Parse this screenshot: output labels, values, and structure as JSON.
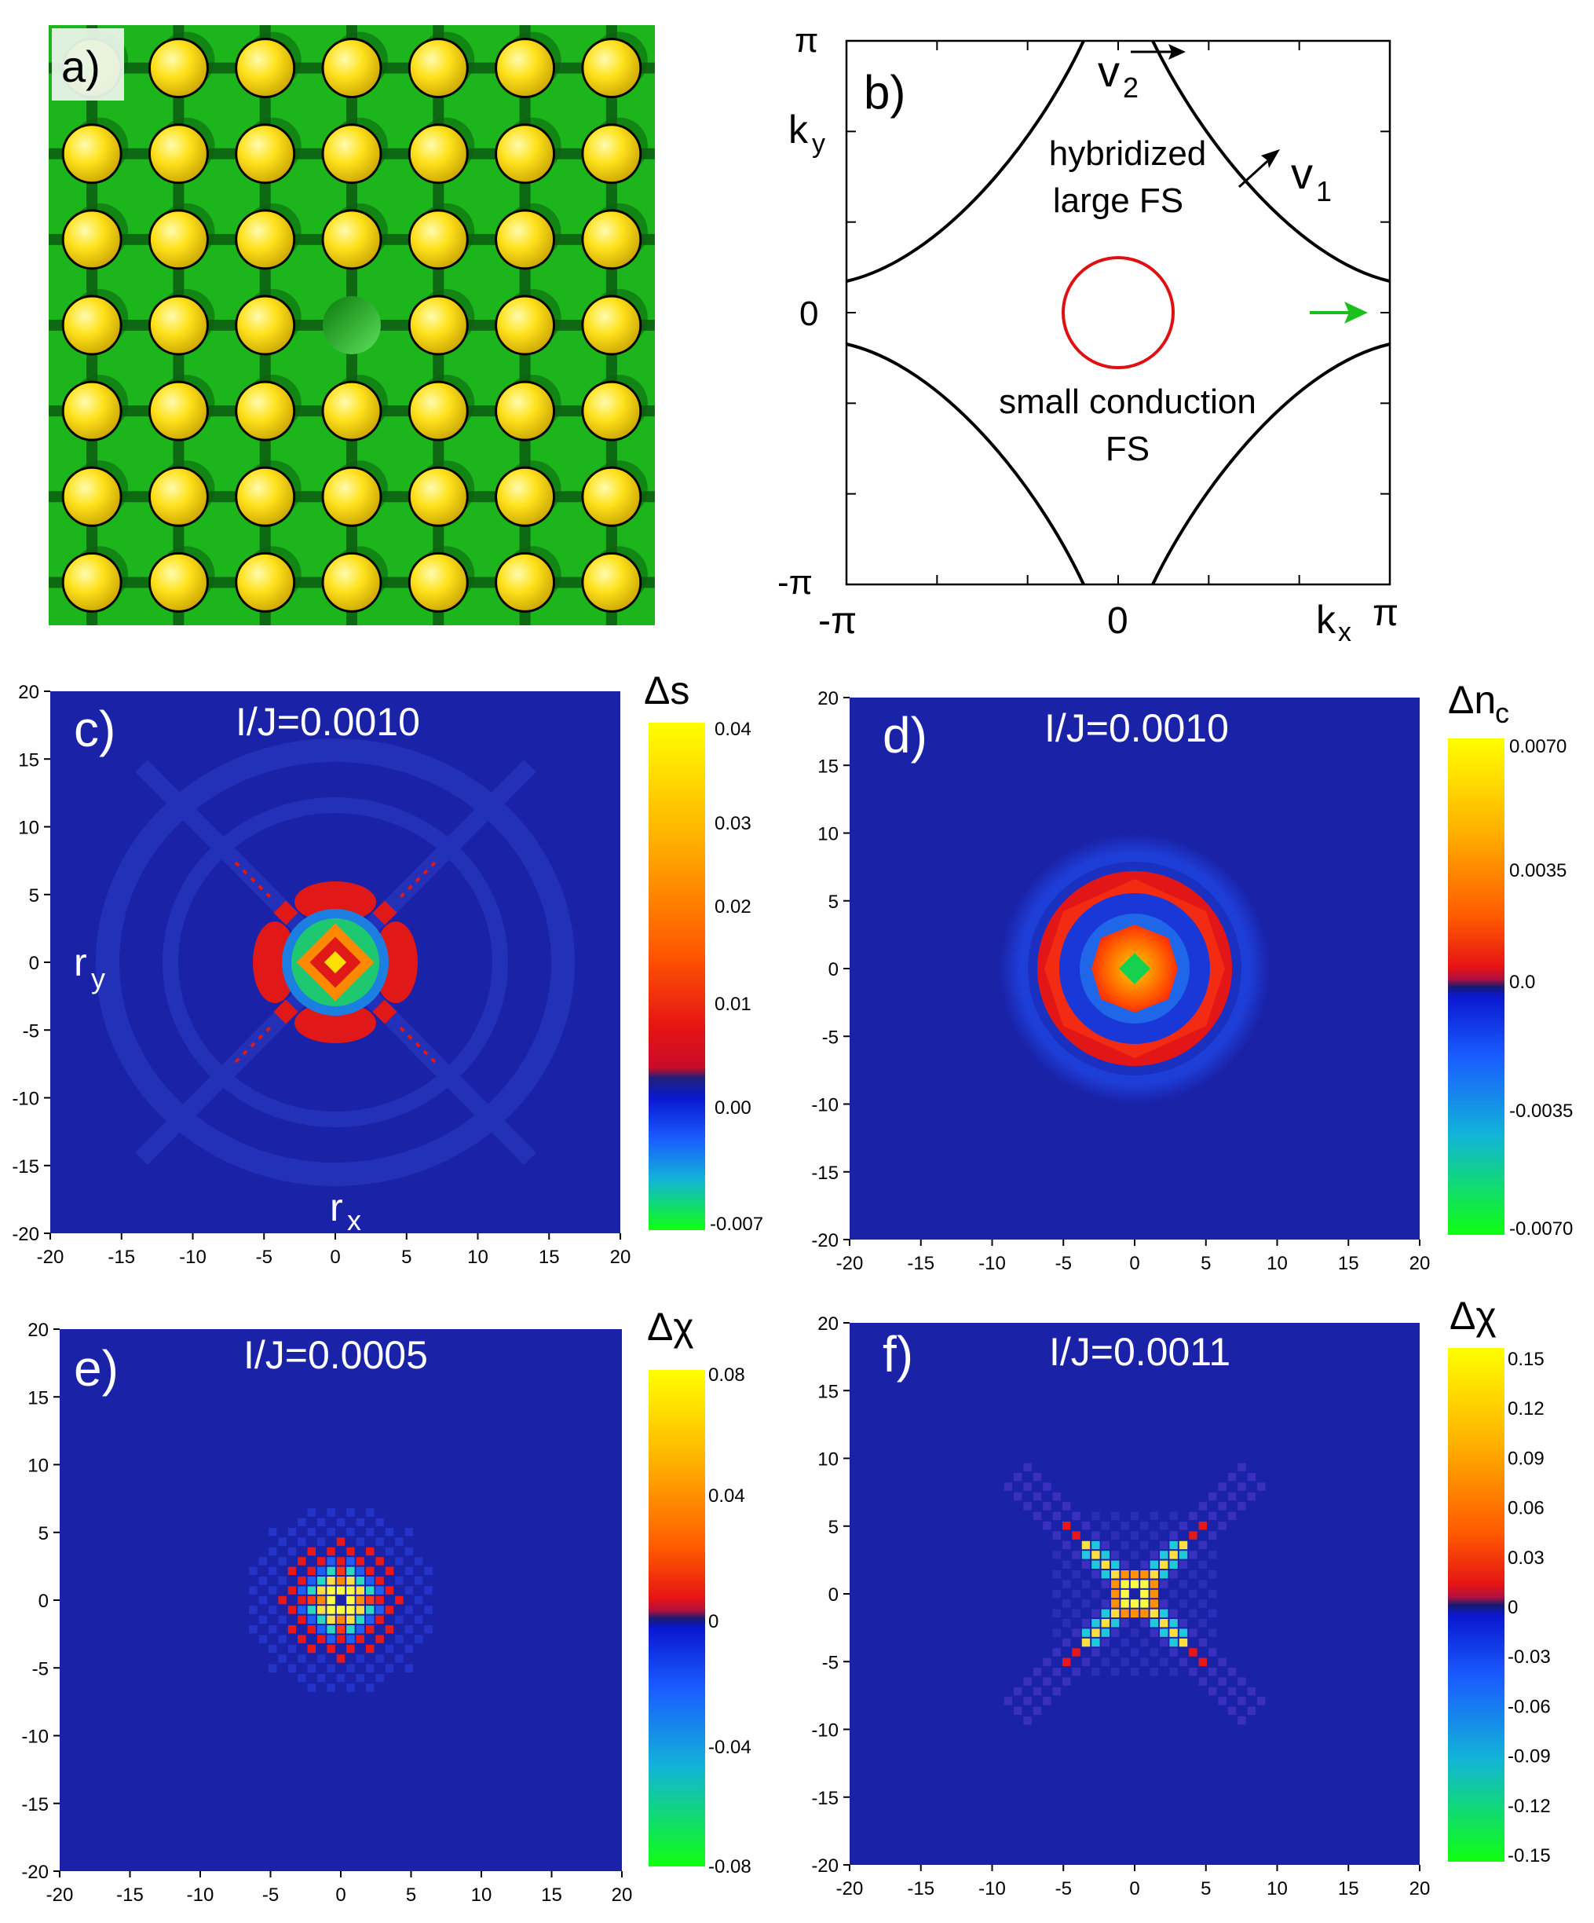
{
  "panel_a": {
    "label": "a)",
    "grid_rows": 7,
    "grid_cols": 7,
    "vacancy": {
      "row": 3,
      "col": 3
    }
  },
  "panel_b": {
    "label": "b)",
    "y_top": "π",
    "y_mid": "0",
    "y_bot": "-π",
    "y_axis": "k",
    "x_left": "-π",
    "x_mid": "0",
    "x_right": "π",
    "x_axis": "k",
    "y_sub": "y",
    "x_sub": "x",
    "v2": "v",
    "v2_sub": "2",
    "v1": "v",
    "v1_sub": "1",
    "large_fs_1": "hybridized",
    "large_fs_2": "large FS",
    "small_fs_1": "small conduction",
    "small_fs_2": "FS"
  },
  "maps": [
    {
      "key": "c",
      "label": "c)",
      "title": "I/J=0.0010",
      "cb_title": "Δs",
      "cb_ticks": [
        "0.04",
        "0.03",
        "0.02",
        "0.01",
        "0.00",
        "-0.007"
      ],
      "axis_x": "r",
      "axis_x_sub": "x",
      "axis_y": "r",
      "axis_y_sub": "y"
    },
    {
      "key": "d",
      "label": "d)",
      "title": "I/J=0.0010",
      "cb_title": "Δn",
      "cb_title_sub": "c",
      "cb_ticks": [
        "0.0070",
        "0.0035",
        "0.0",
        "-0.0035",
        "-0.0070"
      ]
    },
    {
      "key": "e",
      "label": "e)",
      "title": "I/J=0.0005",
      "cb_title": "Δχ",
      "cb_ticks": [
        "0.08",
        "0.04",
        "0",
        "-0.04",
        "-0.08"
      ]
    },
    {
      "key": "f",
      "label": "f)",
      "title": "I/J=0.0011",
      "cb_title": "Δχ",
      "cb_ticks": [
        "0.15",
        "0.12",
        "0.09",
        "0.06",
        "0.03",
        "0",
        "-0.03",
        "-0.06",
        "-0.09",
        "-0.12",
        "-0.15"
      ]
    }
  ],
  "axis_ticks": [
    "-20",
    "-15",
    "-10",
    "-5",
    "0",
    "5",
    "10",
    "15",
    "20"
  ],
  "colors": {
    "green_bg": "#1cb51c",
    "atom": "#ffe01a",
    "map_bg": "#1a22a8",
    "fs_line": "#000000",
    "small_fs": "#e01010",
    "arrow_green": "#1cc01c"
  }
}
